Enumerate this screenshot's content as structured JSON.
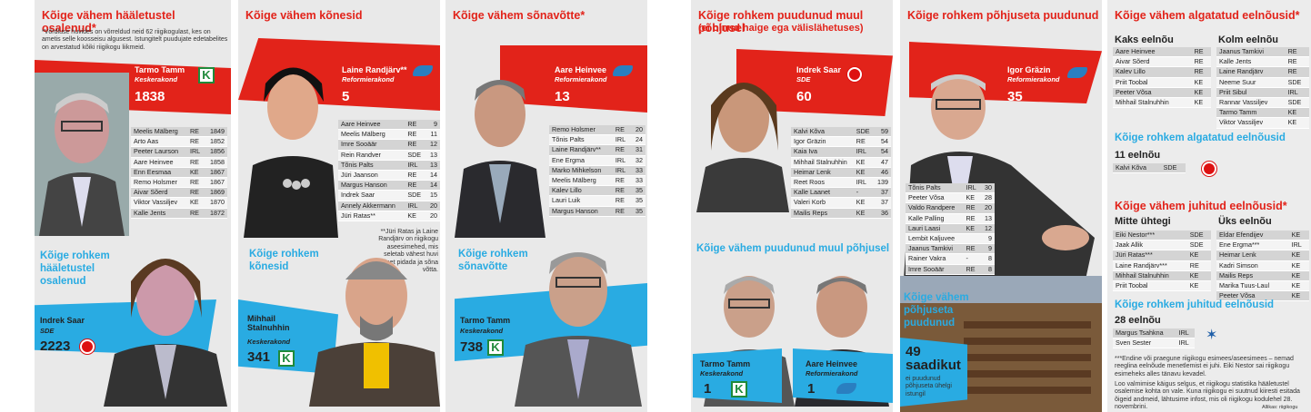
{
  "col1": {
    "title": "Kõige vähem hääletustel osalenud*",
    "note": "*Võrdluse huvides on võrreldud neid 62 riigikogulast, kes on ametis selle koosseisu algusest. Istungitelt puudujate edetabelites on arvestatud kõiki riigikogu liikmeid.",
    "leader": {
      "name": "Tarmo Tamm",
      "party": "Keskerakond",
      "value": "1838"
    },
    "rows": [
      [
        "Meelis Mälberg",
        "RE",
        "1849"
      ],
      [
        "Arto Aas",
        "RE",
        "1852"
      ],
      [
        "Peeter Laurson",
        "IRL",
        "1856"
      ],
      [
        "Aare Heinvee",
        "RE",
        "1858"
      ],
      [
        "Enn Eesmaa",
        "KE",
        "1867"
      ],
      [
        "Remo Holsmer",
        "RE",
        "1867"
      ],
      [
        "Aivar Sõerd",
        "RE",
        "1869"
      ],
      [
        "Viktor Vassiljev",
        "KE",
        "1870"
      ],
      [
        "Kalle Jents",
        "RE",
        "1872"
      ]
    ],
    "most_title": "Kõige rohkem hääletustel osalenud",
    "most": {
      "name": "Indrek Saar",
      "party": "SDE",
      "value": "2223"
    }
  },
  "col2": {
    "title": "Kõige vähem kõnesid",
    "leader": {
      "name": "Laine Randjärv**",
      "party": "Reformierakond",
      "value": "5"
    },
    "rows": [
      [
        "Aare Heinvee",
        "RE",
        "9"
      ],
      [
        "Meelis Mälberg",
        "RE",
        "11"
      ],
      [
        "Imre Sooäär",
        "RE",
        "12"
      ],
      [
        "Rein Randver",
        "SDE",
        "13"
      ],
      [
        "Tõnis Palts",
        "IRL",
        "13"
      ],
      [
        "Jüri Jaanson",
        "RE",
        "14"
      ],
      [
        "Margus Hanson",
        "RE",
        "14"
      ],
      [
        "Indrek Saar",
        "SDE",
        "15"
      ],
      [
        "Annely Akkermann",
        "IRL",
        "20"
      ],
      [
        "Jüri Ratas**",
        "KE",
        "20"
      ]
    ],
    "note": "**Jüri Ratas ja Laine Randjärv on riigikogu aseesimehed, mis seletab vähest huvi kõnet pidada ja sõna võtta.",
    "most_title": "Kõige rohkem kõnesid",
    "most": {
      "name": "Mihhail Stalnuhhin",
      "party": "Keskerakond",
      "value": "341"
    }
  },
  "col3": {
    "title": "Kõige vähem sõnavõtte*",
    "leader": {
      "name": "Aare Heinvee",
      "party": "Reformierakond",
      "value": "13"
    },
    "rows": [
      [
        "Remo Holsmer",
        "RE",
        "20"
      ],
      [
        "Tõnis Palts",
        "IRL",
        "24"
      ],
      [
        "Laine Randjärv**",
        "RE",
        "31"
      ],
      [
        "Ene Ergma",
        "IRL",
        "32"
      ],
      [
        "Marko Mihkelson",
        "IRL",
        "33"
      ],
      [
        "Meelis Mälberg",
        "RE",
        "33"
      ],
      [
        "Kalev Lillo",
        "RE",
        "35"
      ],
      [
        "Lauri Luik",
        "RE",
        "35"
      ],
      [
        "Margus Hanson",
        "RE",
        "35"
      ]
    ],
    "most_title": "Kõige rohkem sõnavõtte",
    "most": {
      "name": "Tarmo Tamm",
      "party": "Keskerakond",
      "value": "738"
    }
  },
  "col4": {
    "title": "Kõige rohkem puudunud muul põhjusel",
    "subtitle": "(ei olnud haige ega välislähetuses)",
    "leader": {
      "name": "Indrek Saar",
      "party": "SDE",
      "value": "60"
    },
    "rows": [
      [
        "Kalvi Kõva",
        "SDE",
        "59"
      ],
      [
        "Igor Gräzin",
        "RE",
        "54"
      ],
      [
        "Kaia Iva",
        "IRL",
        "54"
      ],
      [
        "Mihhail Stalnuhhin",
        "KE",
        "47"
      ],
      [
        "Heimar Lenk",
        "KE",
        "46"
      ],
      [
        "Reet Roos",
        "IRL",
        "139"
      ],
      [
        "Kalle Laanet",
        "-",
        "37"
      ],
      [
        "Valeri Korb",
        "KE",
        "37"
      ],
      [
        "Mailis Reps",
        "KE",
        "36"
      ]
    ],
    "least_title": "Kõige vähem puudunud muul põhjusel",
    "least": [
      {
        "name": "Tarmo Tamm",
        "party": "Keskerakond",
        "value": "1"
      },
      {
        "name": "Aare Heinvee",
        "party": "Reformierakond",
        "value": "1"
      }
    ]
  },
  "col5": {
    "title": "Kõige rohkem põhjuseta puudunud",
    "leader": {
      "name": "Igor Gräzin",
      "party": "Reformierakond",
      "value": "35"
    },
    "rows": [
      [
        "Tõnis Palts",
        "IRL",
        "30"
      ],
      [
        "Peeter Võsa",
        "KE",
        "28"
      ],
      [
        "Valdo Randpere",
        "RE",
        "20"
      ],
      [
        "Kalle Palling",
        "RE",
        "13"
      ],
      [
        "Lauri Laasi",
        "KE",
        "12"
      ],
      [
        "Lembit Kaljuvee",
        "",
        "9"
      ],
      [
        "Jaanus Tamkivi",
        "RE",
        "9"
      ],
      [
        "Rainer Vakra",
        "-",
        "8"
      ],
      [
        "Imre Sooäär",
        "RE",
        "8"
      ]
    ],
    "least_title": "Kõige vähem põhjuseta puudunud",
    "least_value": "49 saadikut",
    "least_desc": "ei puudunud põhjuseta ühelgi istungil"
  },
  "col6": {
    "title": "Kõige vähem algatatud eelnõusid*",
    "g1_title": "Kaks eelnõu",
    "g1": [
      [
        "Aare Heinvee",
        "RE"
      ],
      [
        "Aivar Sõerd",
        "RE"
      ],
      [
        "Kalev Lillo",
        "RE"
      ],
      [
        "Priit Toobal",
        "KE"
      ],
      [
        "Peeter Võsa",
        "KE"
      ],
      [
        "Mihhail Stalnuhhin",
        "KE"
      ]
    ],
    "g2_title": "Kolm eelnõu",
    "g2": [
      [
        "Jaanus Tamkivi",
        "RE"
      ],
      [
        "Kalle Jents",
        "RE"
      ],
      [
        "Laine Randjärv",
        "RE"
      ],
      [
        "Neeme Suur",
        "SDE"
      ],
      [
        "Priit Sibul",
        "IRL"
      ],
      [
        "Rannar Vassiljev",
        "SDE"
      ],
      [
        "Tarmo Tamm",
        "KE"
      ],
      [
        "Viktor Vassiljev",
        "KE"
      ]
    ],
    "h2": "Kõige rohkem algatatud eelnõusid",
    "h2_sub": "11 eelnõu",
    "h2_row": [
      "Kalvi Kõva",
      "SDE"
    ],
    "h3": "Kõige vähem juhitud eelnõusid*",
    "g3_title": "Mitte ühtegi",
    "g3": [
      [
        "Eiki Nestor***",
        "SDE"
      ],
      [
        "Jaak Allik",
        "SDE"
      ],
      [
        "Jüri Ratas***",
        "KE"
      ],
      [
        "Laine Randjärv***",
        "RE"
      ],
      [
        "Mihhail Stalnuhhin",
        "KE"
      ],
      [
        "Priit Toobal",
        "KE"
      ]
    ],
    "g4_title": "Üks eelnõu",
    "g4": [
      [
        "Eldar Efendijev",
        "KE"
      ],
      [
        "Ene Ergma***",
        "IRL"
      ],
      [
        "Heimar Lenk",
        "KE"
      ],
      [
        "Kadri Simson",
        "KE"
      ],
      [
        "Mailis Reps",
        "KE"
      ],
      [
        "Marika Tuus-Laul",
        "KE"
      ],
      [
        "Peeter Võsa",
        "KE"
      ]
    ],
    "h4": "Kõige rohkem juhitud eelnõusid",
    "h4_sub": "28 eelnõu",
    "h4_rows": [
      [
        "Margus Tsahkna",
        "IRL"
      ],
      [
        "Sven Sester",
        "IRL"
      ]
    ],
    "foot1": "***Endine või praegune riigikogu esimees/aseesimees – nemad reeglina eelnõude menetlemist ei juhi. Eiki Nestor sai riigikogu esimeheks alles tänavu kevadel.",
    "foot2": "Loo valmimise käigus selgus, et riigikogu statistika hääletustel osalemise kohta on vale. Kuna riigikogu ei suutnud kiiresti esitada õigeid andmeid, lähtusime infost, mis oli riigikogu kodulehel 28. novembrini.",
    "source": "Allikas: riigikogu"
  },
  "colors": {
    "red": "#e2231a",
    "blue": "#29abe2",
    "gray": "#e9e9e9"
  }
}
